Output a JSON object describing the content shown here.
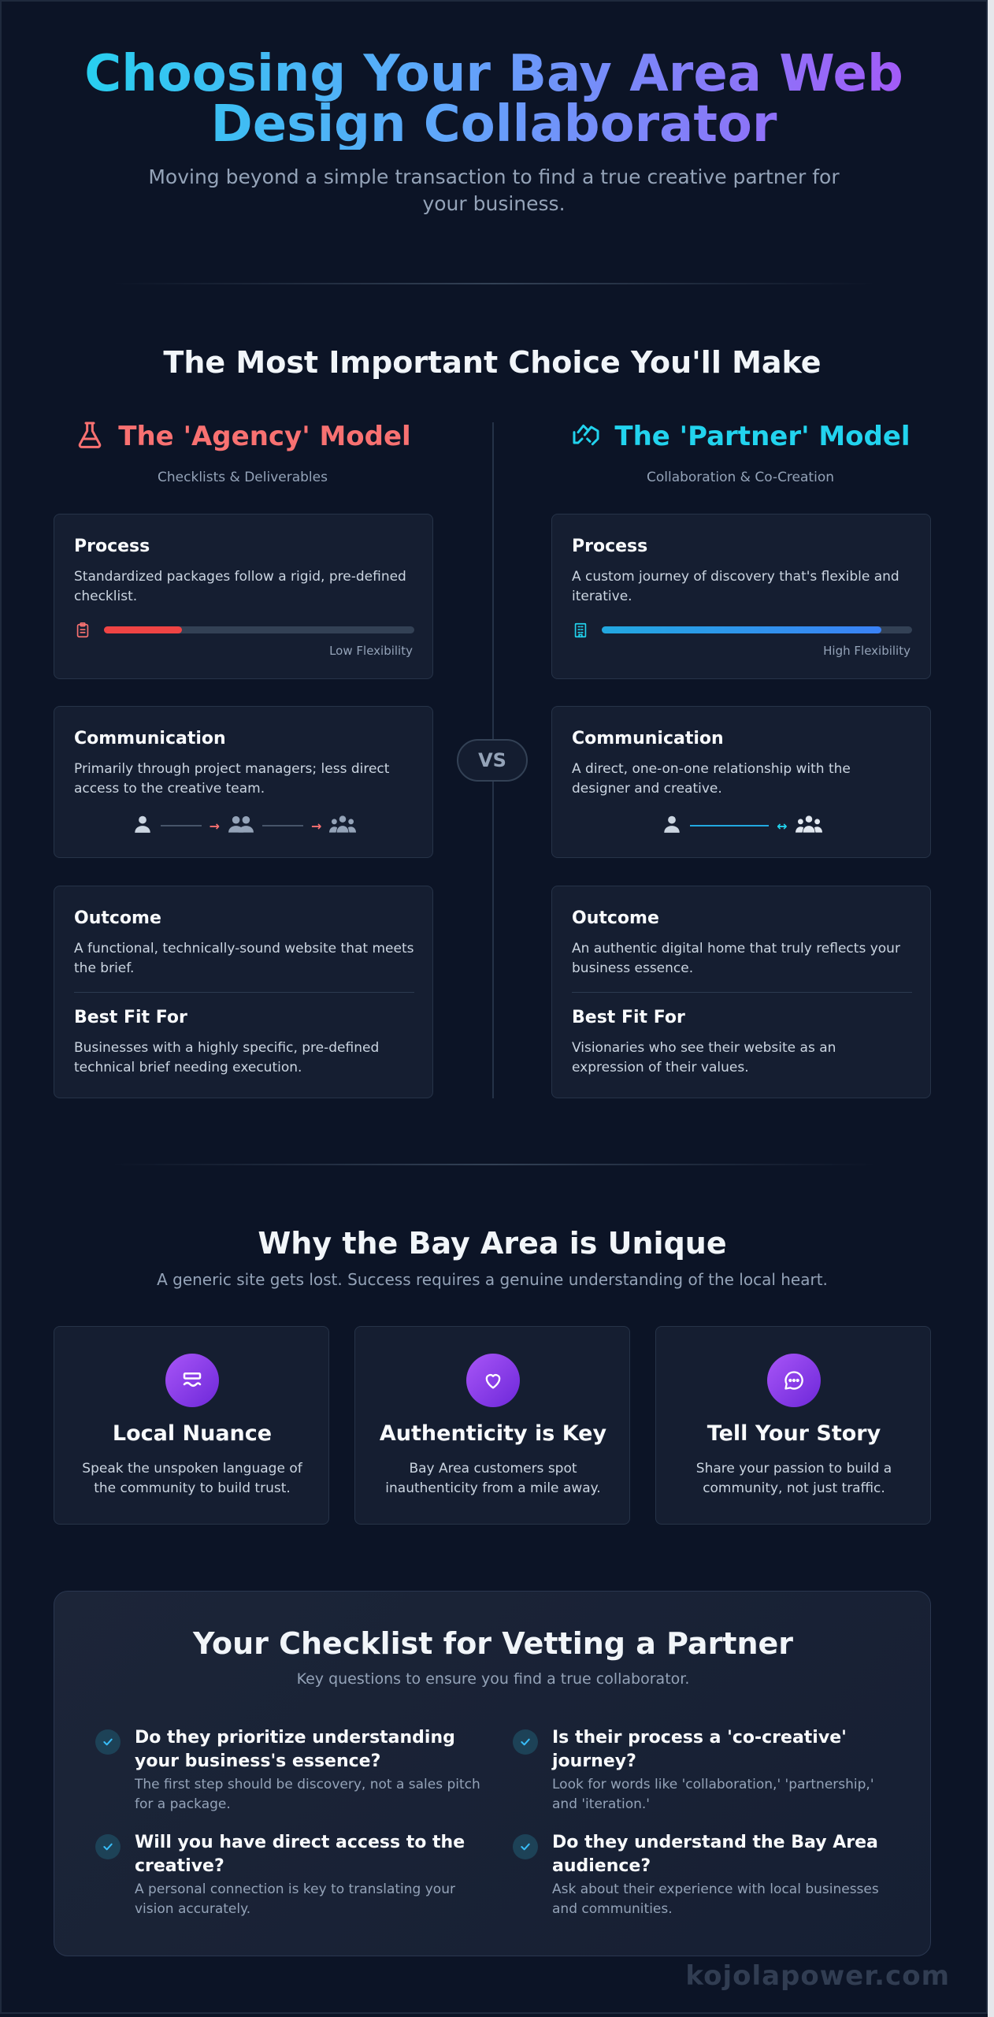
{
  "header": {
    "title": "Choosing Your Bay Area Web Design Collaborator",
    "subtitle": "Moving beyond a simple transaction to find a true creative partner for your business."
  },
  "choice": {
    "title": "The Most Important Choice You'll Make",
    "vs": "VS",
    "agency": {
      "name": "The 'Agency' Model",
      "tagline": "Checklists & Deliverables",
      "icon": "flask-icon",
      "color": "#f87171",
      "process": {
        "title": "Process",
        "text": "Standardized packages follow a rigid, pre-defined checklist.",
        "flexibility": 0.25,
        "flex_label": "Low Flexibility",
        "icon": "clipboard-icon"
      },
      "communication": {
        "title": "Communication",
        "text": "Primarily through project managers; less direct access to the creative team."
      },
      "outcome": {
        "title": "Outcome",
        "text": "A functional, technically-sound website that meets the brief."
      },
      "best_fit": {
        "title": "Best Fit For",
        "text": "Businesses with a highly specific, pre-defined technical brief needing execution."
      }
    },
    "partner": {
      "name": "The 'Partner' Model",
      "tagline": "Collaboration & Co-Creation",
      "icon": "handshake-icon",
      "color": "#22d3ee",
      "process": {
        "title": "Process",
        "text": "A custom journey of discovery that's flexible and iterative.",
        "flexibility": 0.9,
        "flex_label": "High Flexibility",
        "icon": "building-icon"
      },
      "communication": {
        "title": "Communication",
        "text": "A direct, one-on-one relationship with the designer and creative."
      },
      "outcome": {
        "title": "Outcome",
        "text": "An authentic digital home that truly reflects your business essence."
      },
      "best_fit": {
        "title": "Best Fit For",
        "text": "Visionaries who see their website as an expression of their values."
      }
    }
  },
  "unique": {
    "title": "Why the Bay Area is Unique",
    "subtitle": "A generic site gets lost. Success requires a genuine understanding of the local heart.",
    "cards": [
      {
        "icon": "language-icon",
        "title": "Local Nuance",
        "text": "Speak the unspoken language of the community to build trust."
      },
      {
        "icon": "heart-icon",
        "title": "Authenticity is Key",
        "text": "Bay Area customers spot inauthenticity from a mile away."
      },
      {
        "icon": "chat-bubble-icon",
        "title": "Tell Your Story",
        "text": "Share your passion to build a community, not just traffic."
      }
    ]
  },
  "checklist": {
    "title": "Your Checklist for Vetting a Partner",
    "subtitle": "Key questions to ensure you find a true collaborator.",
    "items": [
      {
        "question": "Do they prioritize understanding your business's essence?",
        "detail": "The first step should be discovery, not a sales pitch for a package."
      },
      {
        "question": "Is their process a 'co-creative' journey?",
        "detail": "Look for words like 'collaboration,' 'partnership,' and 'iteration.'"
      },
      {
        "question": "Will you have direct access to the creative?",
        "detail": "A personal connection is key to translating your vision accurately."
      },
      {
        "question": "Do they understand the Bay Area audience?",
        "detail": "Ask about their experience with local businesses and communities."
      }
    ]
  },
  "footer": {
    "brand": "kojolapower.com"
  }
}
